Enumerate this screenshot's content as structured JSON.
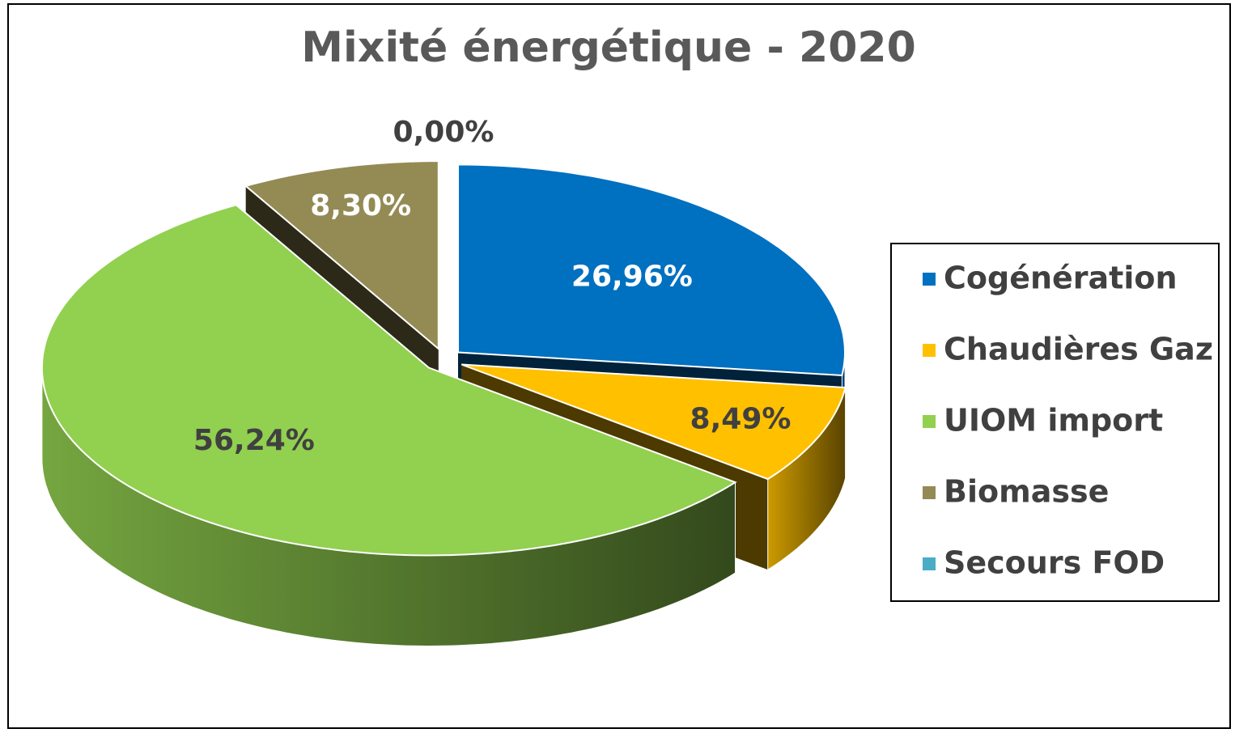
{
  "chart_data": {
    "type": "pie3d",
    "title": "Mixité énergétique - 2020",
    "categories": [
      "Cogénération",
      "Chaudières Gaz",
      "UIOM import",
      "Biomasse",
      "Secours FOD"
    ],
    "values": [
      26.96,
      8.49,
      56.24,
      8.3,
      0.0
    ],
    "value_labels": [
      "26,96%",
      "8,49%",
      "56,24%",
      "8,30%",
      "0,00%"
    ],
    "colors": [
      "#0070c0",
      "#ffc000",
      "#92d050",
      "#948a54",
      "#4bacc6"
    ],
    "legend": "right"
  }
}
